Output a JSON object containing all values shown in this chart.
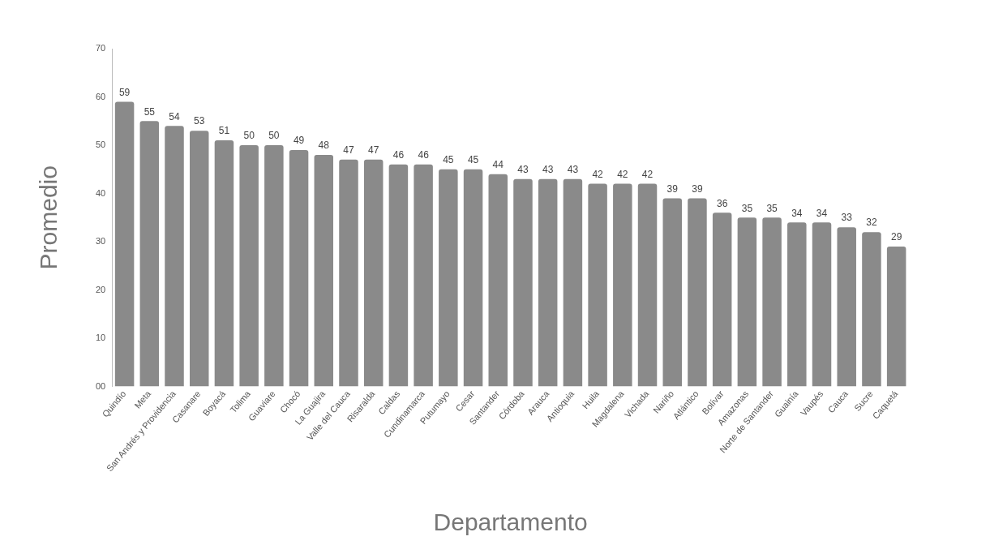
{
  "chart_data": {
    "type": "bar",
    "xlabel": "Departamento",
    "ylabel": "Promedio",
    "categories": [
      "Quindío",
      "Meta",
      "San Andrés y Providencia",
      "Casanare",
      "Boyacá",
      "Tolima",
      "Guaviare",
      "Chocó",
      "La Guajira",
      "Valle del Cauca",
      "Risaralda",
      "Caldas",
      "Cundinamarca",
      "Putumayo",
      "Cesar",
      "Santander",
      "Córdoba",
      "Arauca",
      "Antioquia",
      "Huila",
      "Magdalena",
      "Vichada",
      "Nariño",
      "Atlántico",
      "Bolívar",
      "Amazonas",
      "Norte de Santander",
      "Guainía",
      "Vaupés",
      "Cauca",
      "Sucre",
      "Caquetá"
    ],
    "values": [
      59,
      55,
      54,
      53,
      51,
      50,
      50,
      49,
      48,
      47,
      47,
      46,
      46,
      45,
      45,
      44,
      43,
      43,
      43,
      42,
      42,
      42,
      39,
      39,
      36,
      35,
      35,
      34,
      34,
      33,
      32,
      29
    ],
    "color": "#8a8a8a",
    "ylim": [
      0,
      70
    ],
    "yticks": [
      {
        "value": 0,
        "label": "00"
      },
      10,
      20,
      30,
      40,
      50,
      60,
      70
    ],
    "data_labels": true,
    "grid": false,
    "legend": false
  }
}
